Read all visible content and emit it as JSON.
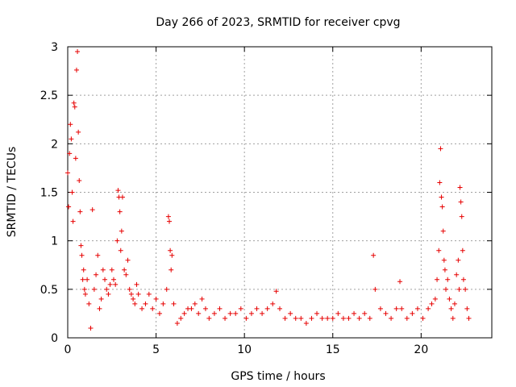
{
  "chart_data": {
    "type": "scatter",
    "title": "Day 266 of 2023, SRMTID for receiver cpvg",
    "xlabel": "GPS time / hours",
    "ylabel": "SRMTID / TECUs",
    "xlim": [
      0,
      24
    ],
    "ylim": [
      0,
      3
    ],
    "xticks": [
      0,
      5,
      10,
      15,
      20
    ],
    "yticks": [
      0,
      0.5,
      1,
      1.5,
      2,
      2.5,
      3
    ],
    "xtick_labels": [
      "0",
      "5",
      "10",
      "15",
      "20"
    ],
    "ytick_labels": [
      "0",
      "0.5",
      "1",
      "1.5",
      "2",
      "2.5",
      "3"
    ],
    "grid": true,
    "marker": "+",
    "color": "#e60000",
    "series": [
      {
        "name": "SRMTID",
        "x": [
          0.0,
          0.05,
          0.1,
          0.15,
          0.2,
          0.25,
          0.3,
          0.35,
          0.4,
          0.45,
          0.5,
          0.55,
          0.6,
          0.65,
          0.7,
          0.75,
          0.8,
          0.85,
          0.9,
          0.95,
          1.0,
          1.1,
          1.2,
          1.3,
          1.4,
          1.5,
          1.6,
          1.7,
          1.8,
          1.9,
          2.0,
          2.1,
          2.2,
          2.3,
          2.4,
          2.5,
          2.6,
          2.7,
          2.8,
          2.85,
          2.9,
          2.95,
          3.0,
          3.05,
          3.1,
          3.2,
          3.3,
          3.4,
          3.5,
          3.6,
          3.7,
          3.8,
          3.9,
          4.0,
          4.2,
          4.4,
          4.6,
          4.8,
          5.0,
          5.2,
          5.4,
          5.6,
          5.7,
          5.75,
          5.8,
          5.85,
          5.9,
          6.0,
          6.2,
          6.4,
          6.6,
          6.8,
          7.0,
          7.2,
          7.4,
          7.6,
          7.8,
          8.0,
          8.3,
          8.6,
          8.9,
          9.2,
          9.5,
          9.8,
          10.1,
          10.4,
          10.7,
          11.0,
          11.3,
          11.6,
          11.8,
          12.0,
          12.3,
          12.6,
          12.9,
          13.2,
          13.5,
          13.8,
          14.1,
          14.4,
          14.7,
          15.0,
          15.3,
          15.6,
          15.9,
          16.2,
          16.5,
          16.8,
          17.1,
          17.3,
          17.4,
          17.7,
          18.0,
          18.3,
          18.6,
          18.8,
          18.9,
          19.2,
          19.5,
          19.8,
          20.1,
          20.4,
          20.6,
          20.8,
          20.9,
          21.0,
          21.05,
          21.1,
          21.15,
          21.2,
          21.25,
          21.3,
          21.35,
          21.4,
          21.5,
          21.6,
          21.7,
          21.8,
          21.9,
          22.0,
          22.1,
          22.15,
          22.2,
          22.25,
          22.3,
          22.35,
          22.4,
          22.5,
          22.6,
          22.7
        ],
        "y": [
          1.7,
          1.35,
          1.9,
          2.2,
          2.05,
          1.5,
          1.2,
          2.42,
          2.38,
          1.85,
          2.76,
          2.95,
          2.12,
          1.62,
          1.3,
          0.95,
          0.85,
          0.6,
          0.7,
          0.5,
          0.45,
          0.6,
          0.35,
          0.1,
          1.32,
          0.5,
          0.65,
          0.85,
          0.3,
          0.4,
          0.7,
          0.6,
          0.5,
          0.45,
          0.55,
          0.7,
          0.6,
          0.55,
          1.0,
          1.52,
          1.45,
          1.3,
          0.9,
          1.1,
          1.45,
          0.7,
          0.65,
          0.8,
          0.5,
          0.45,
          0.4,
          0.35,
          0.55,
          0.45,
          0.3,
          0.35,
          0.45,
          0.3,
          0.4,
          0.25,
          0.35,
          0.5,
          1.25,
          1.2,
          0.9,
          0.7,
          0.85,
          0.35,
          0.15,
          0.2,
          0.25,
          0.3,
          0.3,
          0.35,
          0.25,
          0.4,
          0.3,
          0.2,
          0.25,
          0.3,
          0.2,
          0.25,
          0.25,
          0.3,
          0.2,
          0.25,
          0.3,
          0.25,
          0.3,
          0.35,
          0.48,
          0.3,
          0.2,
          0.25,
          0.2,
          0.2,
          0.15,
          0.2,
          0.25,
          0.2,
          0.2,
          0.2,
          0.25,
          0.2,
          0.2,
          0.25,
          0.2,
          0.25,
          0.2,
          0.85,
          0.5,
          0.3,
          0.25,
          0.2,
          0.3,
          0.58,
          0.3,
          0.2,
          0.25,
          0.3,
          0.2,
          0.3,
          0.35,
          0.4,
          0.6,
          0.9,
          1.6,
          1.95,
          1.45,
          1.35,
          1.1,
          0.8,
          0.7,
          0.5,
          0.6,
          0.4,
          0.3,
          0.2,
          0.35,
          0.65,
          0.8,
          0.5,
          1.55,
          1.4,
          1.25,
          0.9,
          0.6,
          0.5,
          0.3,
          0.2
        ]
      }
    ]
  }
}
